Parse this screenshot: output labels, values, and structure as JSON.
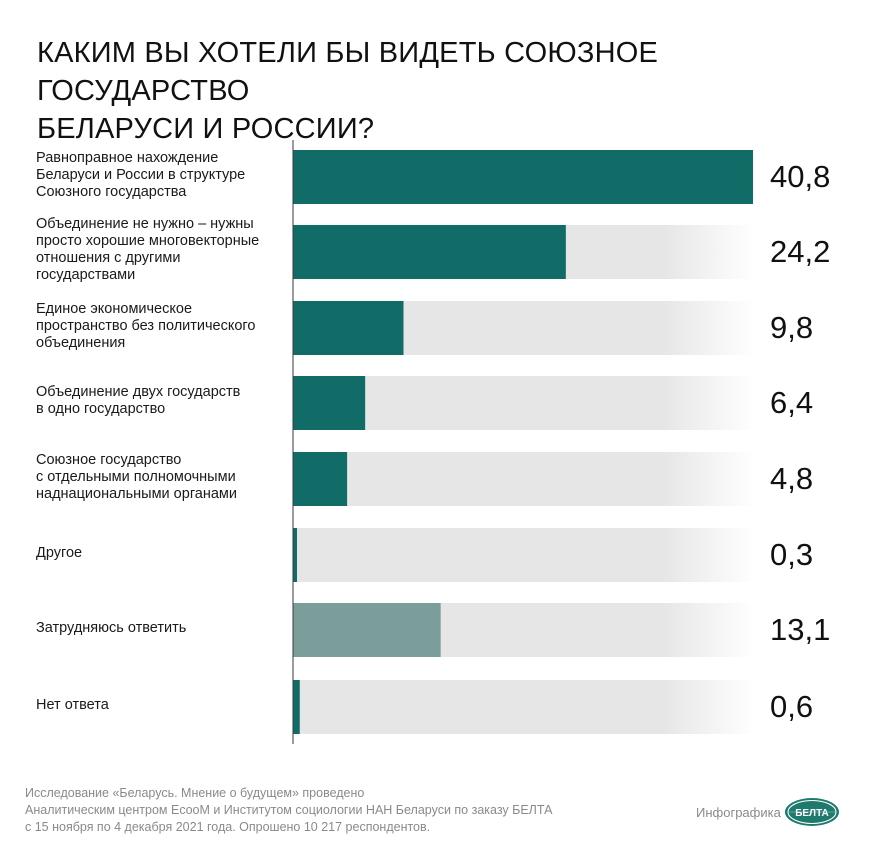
{
  "title_lines": [
    "КАКИМ ВЫ ХОТЕЛИ БЫ ВИДЕТЬ СОЮЗНОЕ ГОСУДАРСТВО",
    "БЕЛАРУСИ И РОССИИ?"
  ],
  "chart_data": {
    "type": "bar",
    "orientation": "horizontal",
    "title": "КАКИМ ВЫ ХОТЕЛИ БЫ ВИДЕТЬ СОЮЗНОЕ ГОСУДАРСТВО БЕЛАРУСИ И РОССИИ?",
    "xlim": [
      0,
      40.8
    ],
    "unit": "%",
    "categories": [
      "Равноправное нахождение Беларуси и России в структуре Союзного государства",
      "Объединение не нужно – нужны просто хорошие многовекторные отношения с другими государствами",
      "Единое экономическое пространство без политического объединения",
      "Объединение двух государств в одно государство",
      "Союзное государство с отдельными полномочными наднациональными органами",
      "Другое",
      "Затрудняюсь ответить",
      "Нет ответа"
    ],
    "label_lines": [
      [
        "Равноправное нахождение",
        "Беларуси и России в структуре",
        "Союзного государства"
      ],
      [
        "Объединение не нужно – нужны",
        "просто хорошие многовекторные",
        "отношения с другими",
        "государствами"
      ],
      [
        "Единое экономическое",
        "пространство без политического",
        "объединения"
      ],
      [
        "Объединение двух государств",
        "в одно государство"
      ],
      [
        "Союзное государство",
        "с отдельными полномочными",
        "наднациональными органами"
      ],
      [
        "Другое"
      ],
      [
        "Затрудняюсь ответить"
      ],
      [
        "Нет ответа"
      ]
    ],
    "values": [
      40.8,
      24.2,
      9.8,
      6.4,
      4.8,
      0.3,
      13.1,
      0.6
    ],
    "value_labels": [
      "40,8",
      "24,2",
      "9,8",
      "6,4",
      "4,8",
      "0,3",
      "13,1",
      "0,6"
    ],
    "highlight": [
      true,
      true,
      true,
      true,
      true,
      true,
      false,
      true
    ]
  },
  "colors": {
    "primary_bar": "#116b66",
    "secondary_bar": "#7c9e9b",
    "track": "#e6e6e6",
    "axis": "#3a3a3a"
  },
  "footer": {
    "lines": [
      "Исследование «Беларусь. Мнение о будущем» проведено",
      "Аналитическим центром EcooM и Институтом социологии НАН Беларуси по заказу БЕЛТА",
      "с 15 ноября по 4 декабря 2021 года. Опрошено 10 217 респондентов."
    ],
    "credit": "Инфографика",
    "logo_text": "БЕЛТА"
  }
}
